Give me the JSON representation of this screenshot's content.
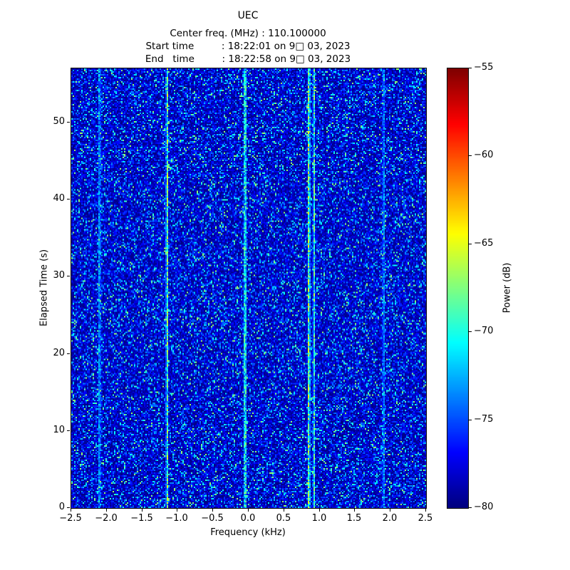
{
  "chart_data": {
    "type": "heatmap",
    "title": "UEC",
    "subtitle_lines": [
      "Center freq. (MHz) : 110.100000",
      "Start time         : 18:22:01 on 9□ 03, 2023",
      "End   time         : 18:22:58 on 9□ 03, 2023"
    ],
    "xlabel": "Frequency (kHz)",
    "ylabel": "Elapsed Time (s)",
    "xlim": [
      -2.5,
      2.5
    ],
    "ylim": [
      0,
      57
    ],
    "x_ticks": [
      -2.5,
      -2.0,
      -1.5,
      -1.0,
      -0.5,
      0.0,
      0.5,
      1.0,
      1.5,
      2.0,
      2.5
    ],
    "x_tick_labels": [
      "−2.5",
      "−2.0",
      "−1.5",
      "−1.0",
      "−0.5",
      "0.0",
      "0.5",
      "1.0",
      "1.5",
      "2.0",
      "2.5"
    ],
    "y_ticks": [
      0,
      10,
      20,
      30,
      40,
      50
    ],
    "y_tick_labels": [
      "0",
      "10",
      "20",
      "30",
      "40",
      "50"
    ],
    "colorbar": {
      "label": "Power (dB)",
      "vmin": -80,
      "vmax": -55,
      "ticks": [
        -55,
        -60,
        -65,
        -70,
        -75,
        -80
      ],
      "tick_labels": [
        "−55",
        "−60",
        "−65",
        "−70",
        "−75",
        "−80"
      ],
      "colormap": "jet"
    },
    "noise": {
      "floor_db": -80,
      "mean_above_floor_db": 3.0,
      "max_above_floor_db": 13
    },
    "signals": [
      {
        "freq_khz": -2.1,
        "peak_db": -70
      },
      {
        "freq_khz": -1.15,
        "peak_db": -65
      },
      {
        "freq_khz": -0.05,
        "peak_db": -64
      },
      {
        "freq_khz": 0.85,
        "peak_db": -63
      },
      {
        "freq_khz": 0.92,
        "peak_db": -67
      },
      {
        "freq_khz": 1.9,
        "peak_db": -71
      }
    ]
  }
}
